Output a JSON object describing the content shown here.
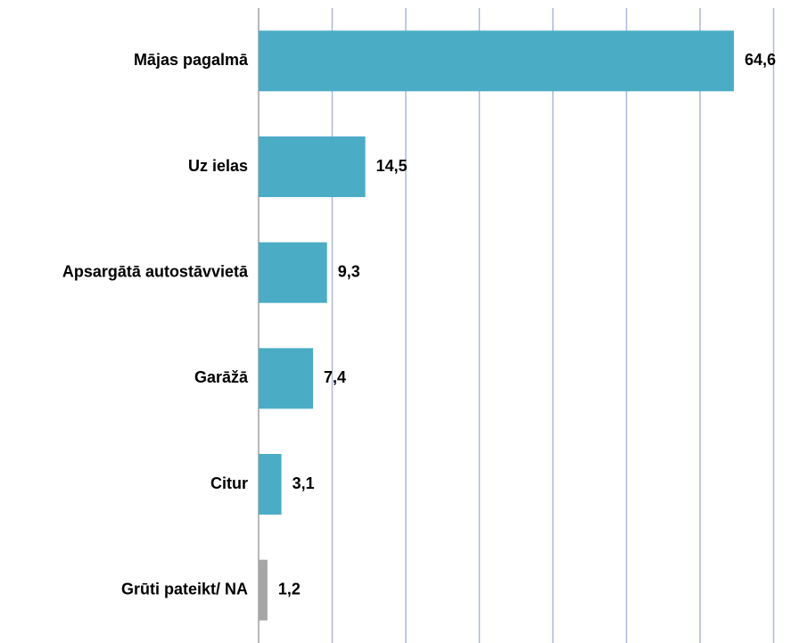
{
  "chart_data": {
    "type": "hbar",
    "categories": [
      "Mājas pagalmā",
      "Uz ielas",
      "Apsargātā autostāvvietā",
      "Garāžā",
      "Citur",
      "Grūti pateikt/ NA"
    ],
    "values": [
      64.6,
      14.5,
      9.3,
      7.4,
      3.1,
      1.2
    ],
    "value_labels": [
      "64,6",
      "14,5",
      "9,3",
      "7,4",
      "3,1",
      "1,2"
    ],
    "colors": [
      "#4bacc6",
      "#4bacc6",
      "#4bacc6",
      "#4bacc6",
      "#4bacc6",
      "#a6a6a6"
    ],
    "xlim": [
      0,
      70
    ],
    "xticks": [
      0,
      10,
      20,
      30,
      40,
      50,
      60,
      70
    ],
    "grid": true
  }
}
